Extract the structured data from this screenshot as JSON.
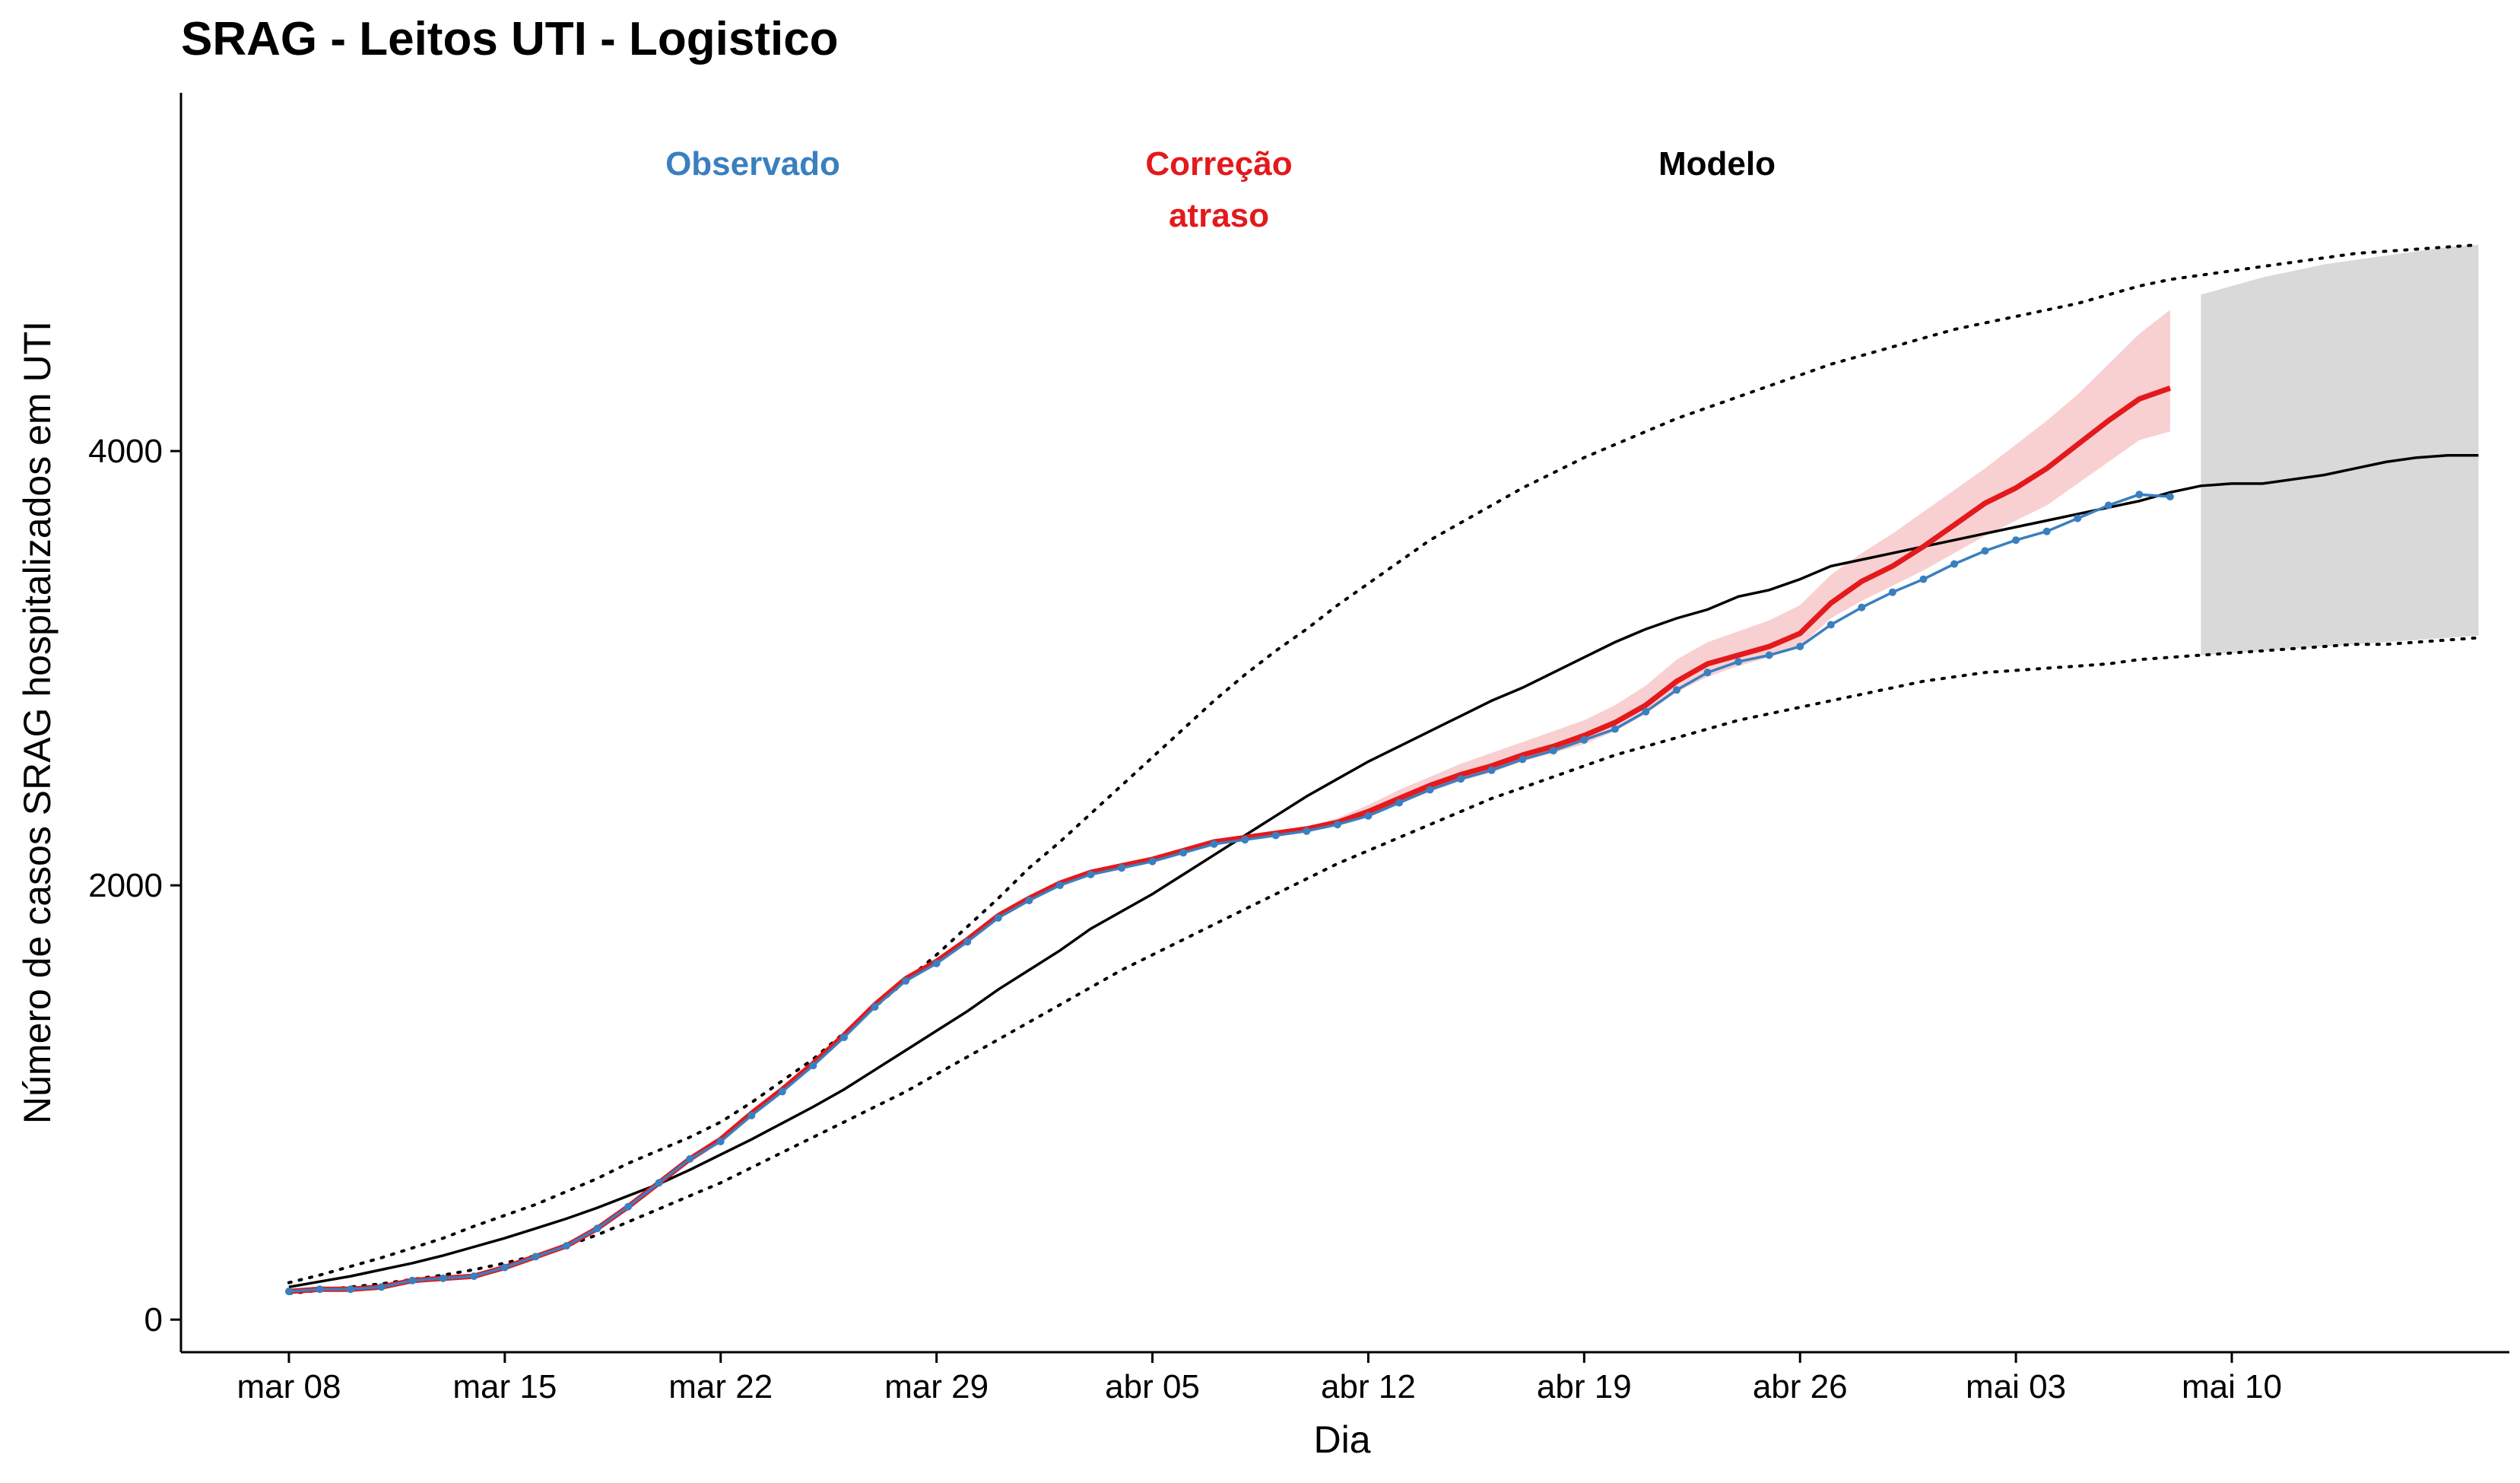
{
  "chart_data": {
    "type": "line",
    "title": "SRAG - Leitos UTI - Logistico",
    "xlabel": "Dia",
    "ylabel": "Número de casos SRAG hospitalizados em UTI",
    "x_start": "mar 08",
    "xlim": [
      -3.5,
      72
    ],
    "ylim": [
      -150,
      5650
    ],
    "x_ticks": [
      {
        "day": 0,
        "label": "mar 08"
      },
      {
        "day": 7,
        "label": "mar 15"
      },
      {
        "day": 14,
        "label": "mar 22"
      },
      {
        "day": 21,
        "label": "mar 29"
      },
      {
        "day": 28,
        "label": "abr 05"
      },
      {
        "day": 35,
        "label": "abr 12"
      },
      {
        "day": 42,
        "label": "abr 19"
      },
      {
        "day": 49,
        "label": "abr 26"
      },
      {
        "day": 56,
        "label": "mai 03"
      },
      {
        "day": 63,
        "label": "mai 10"
      }
    ],
    "y_ticks": [
      0,
      2000,
      4000
    ],
    "grid": false,
    "legend_labels": [
      {
        "key": "observado",
        "lines": [
          "Observado"
        ],
        "color": "#3A7FBF"
      },
      {
        "key": "correcao",
        "lines": [
          "Correção",
          "atraso"
        ],
        "color": "#E3191C"
      },
      {
        "key": "modelo",
        "lines": [
          "Modelo"
        ],
        "color": "#000000"
      }
    ],
    "colors": {
      "observed": "#3A7FBF",
      "corrected": "#E3191C",
      "corrected_band": "#F8D0D1",
      "model": "#000000",
      "forecast_band": "#D9D9D9"
    },
    "series": [
      {
        "key": "observed",
        "x_start_day": 0,
        "values": [
          130,
          140,
          140,
          150,
          180,
          190,
          200,
          240,
          290,
          340,
          420,
          520,
          630,
          740,
          820,
          940,
          1050,
          1170,
          1300,
          1440,
          1560,
          1640,
          1740,
          1850,
          1930,
          2000,
          2050,
          2080,
          2110,
          2150,
          2190,
          2210,
          2230,
          2250,
          2280,
          2320,
          2380,
          2440,
          2490,
          2530,
          2580,
          2620,
          2670,
          2720,
          2800,
          2900,
          2980,
          3030,
          3060,
          3100,
          3200,
          3280,
          3350,
          3410,
          3480,
          3540,
          3590,
          3630,
          3690,
          3750,
          3800,
          3790
        ]
      },
      {
        "key": "corrected",
        "x_start_day": 0,
        "values": [
          130,
          140,
          140,
          150,
          180,
          190,
          200,
          240,
          290,
          340,
          420,
          520,
          630,
          740,
          830,
          950,
          1060,
          1180,
          1310,
          1450,
          1570,
          1650,
          1750,
          1860,
          1940,
          2010,
          2060,
          2090,
          2120,
          2160,
          2200,
          2220,
          2240,
          2260,
          2290,
          2340,
          2400,
          2460,
          2510,
          2550,
          2600,
          2640,
          2690,
          2750,
          2830,
          2940,
          3020,
          3060,
          3100,
          3160,
          3300,
          3400,
          3470,
          3560,
          3660,
          3760,
          3830,
          3920,
          4030,
          4140,
          4240,
          4290
        ],
        "band_lower": [
          130,
          140,
          140,
          150,
          180,
          190,
          200,
          240,
          290,
          340,
          420,
          520,
          630,
          740,
          830,
          950,
          1060,
          1180,
          1310,
          1450,
          1570,
          1650,
          1750,
          1860,
          1940,
          2010,
          2060,
          2090,
          2120,
          2160,
          2200,
          2220,
          2240,
          2260,
          2290,
          2330,
          2380,
          2430,
          2480,
          2520,
          2570,
          2610,
          2650,
          2710,
          2790,
          2890,
          2960,
          3010,
          3050,
          3100,
          3230,
          3310,
          3380,
          3450,
          3530,
          3610,
          3680,
          3750,
          3850,
          3950,
          4050,
          4090
        ],
        "band_upper": [
          130,
          140,
          140,
          150,
          180,
          190,
          200,
          240,
          290,
          340,
          420,
          520,
          630,
          740,
          830,
          950,
          1060,
          1180,
          1310,
          1450,
          1570,
          1650,
          1750,
          1860,
          1940,
          2010,
          2060,
          2090,
          2120,
          2160,
          2200,
          2220,
          2240,
          2270,
          2310,
          2370,
          2440,
          2500,
          2560,
          2610,
          2660,
          2710,
          2760,
          2830,
          2920,
          3040,
          3120,
          3170,
          3220,
          3290,
          3430,
          3530,
          3620,
          3720,
          3820,
          3920,
          4030,
          4140,
          4260,
          4400,
          4540,
          4650
        ]
      },
      {
        "key": "model",
        "x_start_day": 0,
        "values": [
          150,
          175,
          200,
          230,
          260,
          295,
          335,
          375,
          420,
          465,
          515,
          570,
          625,
          690,
          760,
          830,
          905,
          980,
          1060,
          1150,
          1240,
          1330,
          1420,
          1520,
          1610,
          1700,
          1800,
          1880,
          1960,
          2050,
          2140,
          2230,
          2320,
          2410,
          2490,
          2570,
          2640,
          2710,
          2780,
          2850,
          2910,
          2980,
          3050,
          3120,
          3180,
          3230,
          3270,
          3330,
          3360,
          3410,
          3470,
          3500,
          3530,
          3560,
          3590,
          3620,
          3650,
          3680,
          3710,
          3740,
          3770,
          3810,
          3840,
          3850,
          3850,
          3870,
          3890,
          3920,
          3950,
          3970,
          3980,
          3980
        ]
      },
      {
        "key": "model_lower",
        "x_start_day": 0,
        "values": [
          120,
          135,
          150,
          165,
          185,
          205,
          230,
          260,
          295,
          340,
          390,
          450,
          510,
          570,
          630,
          700,
          770,
          840,
          910,
          980,
          1050,
          1130,
          1210,
          1290,
          1370,
          1450,
          1530,
          1610,
          1680,
          1750,
          1820,
          1890,
          1960,
          2030,
          2100,
          2160,
          2220,
          2280,
          2340,
          2400,
          2450,
          2500,
          2550,
          2600,
          2640,
          2680,
          2720,
          2760,
          2790,
          2820,
          2850,
          2880,
          2910,
          2940,
          2960,
          2980,
          2990,
          3000,
          3010,
          3020,
          3040,
          3050,
          3060,
          3070,
          3080,
          3090,
          3100,
          3110,
          3110,
          3120,
          3130,
          3140
        ]
      },
      {
        "key": "model_upper",
        "x_start_day": 0,
        "values": [
          170,
          205,
          245,
          285,
          330,
          375,
          430,
          480,
          530,
          590,
          650,
          720,
          780,
          840,
          910,
          1000,
          1100,
          1200,
          1320,
          1440,
          1560,
          1680,
          1810,
          1940,
          2080,
          2200,
          2330,
          2460,
          2590,
          2720,
          2850,
          2970,
          3080,
          3180,
          3290,
          3390,
          3490,
          3590,
          3670,
          3750,
          3830,
          3900,
          3970,
          4030,
          4090,
          4150,
          4200,
          4250,
          4300,
          4350,
          4400,
          4440,
          4480,
          4520,
          4560,
          4590,
          4620,
          4650,
          4680,
          4720,
          4760,
          4790,
          4810,
          4830,
          4850,
          4870,
          4890,
          4910,
          4920,
          4930,
          4940,
          4950
        ]
      }
    ],
    "forecast_band": {
      "x_start_day": 62,
      "x_end_day": 71,
      "lower": [
        3060,
        3070,
        3080,
        3090,
        3100,
        3110,
        3120,
        3130,
        3140,
        3150
      ],
      "upper": [
        4720,
        4760,
        4800,
        4830,
        4860,
        4880,
        4900,
        4920,
        4940,
        4950
      ]
    }
  }
}
